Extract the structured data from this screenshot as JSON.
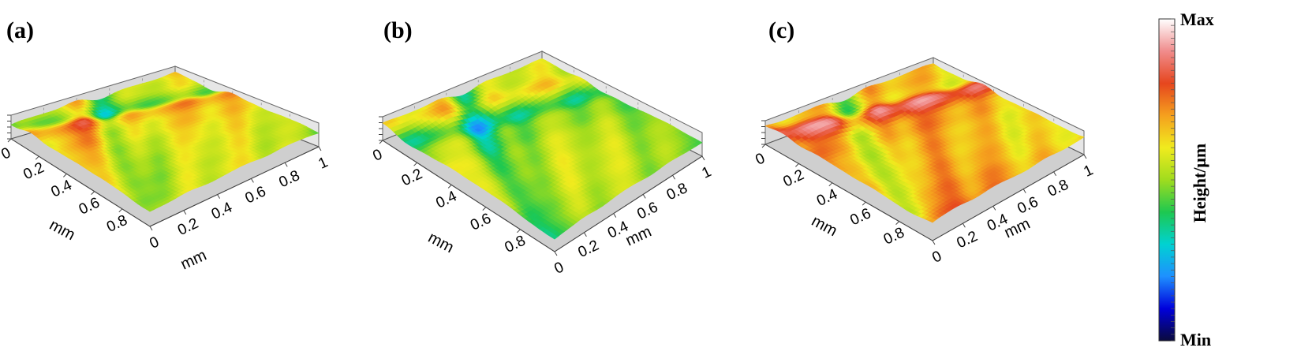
{
  "chart_data": [
    {
      "type": "heatmap",
      "panel_label": "(a)",
      "x_ticks": [
        "0",
        "0.2",
        "0.4",
        "0.6",
        "0.8",
        "1"
      ],
      "y_ticks": [
        "0",
        "0.2",
        "0.4",
        "0.6",
        "0.8"
      ],
      "x_unit": "mm",
      "y_unit": "mm",
      "x_range": [
        0,
        1
      ],
      "y_range": [
        0,
        1
      ],
      "mean_height_level": 0.58,
      "roughness_level": 0.55,
      "stripe_direction": "diagonal"
    },
    {
      "type": "heatmap",
      "panel_label": "(b)",
      "x_ticks": [
        "0",
        "0.2",
        "0.4",
        "0.6",
        "0.8",
        "1"
      ],
      "y_ticks": [
        "0",
        "0.2",
        "0.4",
        "0.6",
        "0.8"
      ],
      "x_unit": "mm",
      "y_unit": "mm",
      "x_range": [
        0,
        1
      ],
      "y_range": [
        0,
        1
      ],
      "mean_height_level": 0.5,
      "roughness_level": 0.55,
      "stripe_direction": "diagonal"
    },
    {
      "type": "heatmap",
      "panel_label": "(c)",
      "x_ticks": [
        "0",
        "0.2",
        "0.4",
        "0.6",
        "0.8",
        "1"
      ],
      "y_ticks": [
        "0",
        "0.2",
        "0.4",
        "0.6",
        "0.8"
      ],
      "x_unit": "mm",
      "y_unit": "mm",
      "x_range": [
        0,
        1
      ],
      "y_range": [
        0,
        1
      ],
      "mean_height_level": 0.68,
      "roughness_level": 0.6,
      "stripe_direction": "diagonal"
    }
  ],
  "colorbar": {
    "max_label": "Max",
    "min_label": "Min",
    "title": "Height/μm",
    "colors": [
      "#0a0a3c",
      "#0000dc",
      "#1e90ff",
      "#00d2d2",
      "#1ec850",
      "#a0dc1e",
      "#f0eb1e",
      "#f5a01e",
      "#e6461e",
      "#f08c8c",
      "#ffffff"
    ]
  }
}
